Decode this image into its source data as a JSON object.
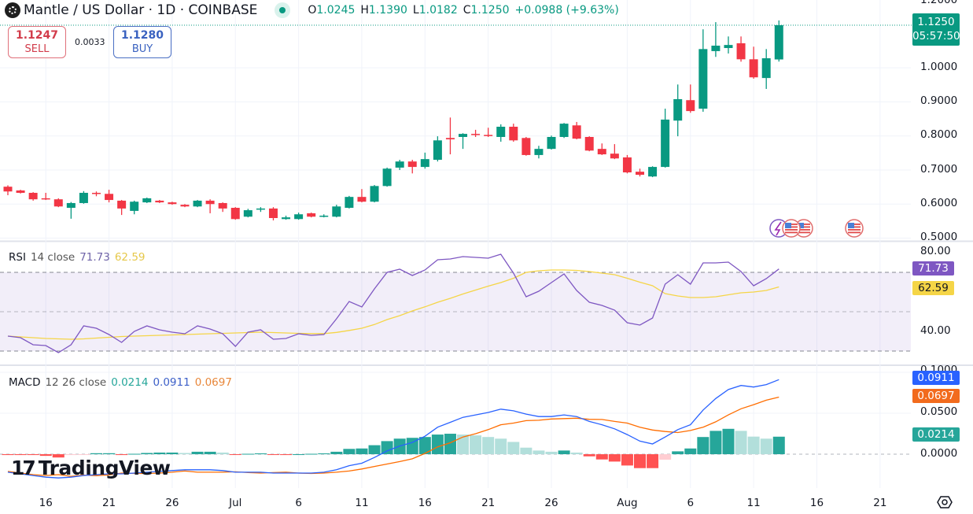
{
  "header": {
    "symbol_title": "Mantle / US Dollar · 1D · COINBASE",
    "ohlc": [
      {
        "k": "O",
        "v": "1.0245"
      },
      {
        "k": "H",
        "v": "1.1390"
      },
      {
        "k": "L",
        "v": "1.0182"
      },
      {
        "k": "C",
        "v": "1.1250"
      }
    ],
    "change": "+0.0988 (+9.63%)"
  },
  "trade": {
    "sell_price": "1.1247",
    "sell_label": "SELL",
    "spread": "0.0033",
    "buy_price": "1.1280",
    "buy_label": "BUY"
  },
  "price_axis": {
    "ticks": [
      "1.2000",
      "1.0000",
      "0.9000",
      "0.8000",
      "0.7000",
      "0.6000",
      "0.5000"
    ],
    "last_price": "1.1250",
    "countdown": "05:57:50"
  },
  "rsi_legend": {
    "name": "RSI",
    "params": "14 close",
    "value": "71.73",
    "ma_value": "62.59"
  },
  "rsi_axis": {
    "ticks": [
      "80.00",
      "40.00"
    ],
    "tag_rsi": "71.73",
    "tag_ma": "62.59"
  },
  "macd_legend": {
    "name": "MACD",
    "params": "12 26 close",
    "hist": "0.0214",
    "macd": "0.0911",
    "signal": "0.0697"
  },
  "macd_axis": {
    "ticks": [
      "0.1000",
      "0.0500",
      "0.0000"
    ],
    "tag_macd": "0.0911",
    "tag_signal": "0.0697",
    "tag_hist": "0.0214"
  },
  "logo": "TradingView",
  "icons": {
    "settings": "gear-icon",
    "events": [
      "lightning-icon",
      "us-flag-icon",
      "us-flag-icon",
      "us-flag-icon"
    ]
  },
  "colors": {
    "up": "#089981",
    "down": "#f23645",
    "rsi": "#7e57c2",
    "rsi_ma": "#f5d547",
    "macd": "#2962ff",
    "signal": "#ff6d00",
    "hist_up_strong": "#26a69a",
    "hist_up_weak": "#b2dfdb",
    "hist_down_strong": "#ff5252",
    "hist_down_weak": "#ffcdd2"
  },
  "chart_data": [
    {
      "type": "candlestick",
      "ylim": [
        0.492,
        1.199
      ],
      "x_ticks": [
        {
          "label": "16",
          "date": "Jun 16"
        },
        {
          "label": "21",
          "date": "Jun 21"
        },
        {
          "label": "26",
          "date": "Jun 26"
        },
        {
          "label": "Jul",
          "date": "Jul 1"
        },
        {
          "label": "6",
          "date": "Jul 6"
        },
        {
          "label": "11",
          "date": "Jul 11"
        },
        {
          "label": "16",
          "date": "Jul 16"
        },
        {
          "label": "21",
          "date": "Jul 21"
        },
        {
          "label": "26",
          "date": "Jul 26"
        },
        {
          "label": "Aug",
          "date": "Aug 1"
        },
        {
          "label": "6",
          "date": "Aug 6"
        },
        {
          "label": "11",
          "date": "Aug 11"
        },
        {
          "label": "16",
          "date": "Aug 16"
        },
        {
          "label": "21",
          "date": "Aug 21"
        }
      ],
      "dates": [
        "Jun 13",
        "Jun 14",
        "Jun 15",
        "Jun 16",
        "Jun 17",
        "Jun 18",
        "Jun 19",
        "Jun 20",
        "Jun 21",
        "Jun 22",
        "Jun 23",
        "Jun 24",
        "Jun 25",
        "Jun 26",
        "Jun 27",
        "Jun 28",
        "Jun 29",
        "Jun 30",
        "Jul 1",
        "Jul 2",
        "Jul 3",
        "Jul 4",
        "Jul 5",
        "Jul 6",
        "Jul 7",
        "Jul 8",
        "Jul 9",
        "Jul 10",
        "Jul 11",
        "Jul 12",
        "Jul 13",
        "Jul 14",
        "Jul 15",
        "Jul 16",
        "Jul 17",
        "Jul 18",
        "Jul 19",
        "Jul 20",
        "Jul 21",
        "Jul 22",
        "Jul 23",
        "Jul 24",
        "Jul 25",
        "Jul 26",
        "Jul 27",
        "Jul 28",
        "Jul 29",
        "Jul 30",
        "Jul 31",
        "Aug 1",
        "Aug 2",
        "Aug 3",
        "Aug 4",
        "Aug 5",
        "Aug 6",
        "Aug 7",
        "Aug 8",
        "Aug 9",
        "Aug 10",
        "Aug 11",
        "Aug 12",
        "Aug 13"
      ],
      "ohlc": [
        [
          0.651,
          0.655,
          0.626,
          0.637
        ],
        [
          0.64,
          0.642,
          0.631,
          0.633
        ],
        [
          0.633,
          0.635,
          0.61,
          0.614
        ],
        [
          0.617,
          0.633,
          0.612,
          0.615
        ],
        [
          0.614,
          0.617,
          0.591,
          0.593
        ],
        [
          0.589,
          0.606,
          0.557,
          0.603
        ],
        [
          0.603,
          0.638,
          0.601,
          0.633
        ],
        [
          0.633,
          0.637,
          0.623,
          0.63
        ],
        [
          0.63,
          0.642,
          0.605,
          0.612
        ],
        [
          0.61,
          0.612,
          0.568,
          0.587
        ],
        [
          0.58,
          0.61,
          0.57,
          0.607
        ],
        [
          0.605,
          0.619,
          0.603,
          0.617
        ],
        [
          0.61,
          0.612,
          0.603,
          0.605
        ],
        [
          0.605,
          0.607,
          0.598,
          0.6
        ],
        [
          0.598,
          0.6,
          0.591,
          0.593
        ],
        [
          0.593,
          0.612,
          0.591,
          0.61
        ],
        [
          0.61,
          0.614,
          0.573,
          0.6
        ],
        [
          0.603,
          0.605,
          0.577,
          0.587
        ],
        [
          0.589,
          0.591,
          0.554,
          0.556
        ],
        [
          0.563,
          0.586,
          0.561,
          0.582
        ],
        [
          0.585,
          0.591,
          0.577,
          0.587
        ],
        [
          0.587,
          0.591,
          0.552,
          0.559
        ],
        [
          0.556,
          0.566,
          0.554,
          0.561
        ],
        [
          0.556,
          0.575,
          0.554,
          0.57
        ],
        [
          0.573,
          0.575,
          0.561,
          0.563
        ],
        [
          0.565,
          0.57,
          0.561,
          0.566
        ],
        [
          0.563,
          0.598,
          0.561,
          0.593
        ],
        [
          0.589,
          0.624,
          0.587,
          0.621
        ],
        [
          0.621,
          0.644,
          0.605,
          0.607
        ],
        [
          0.607,
          0.656,
          0.605,
          0.653
        ],
        [
          0.653,
          0.707,
          0.651,
          0.704
        ],
        [
          0.707,
          0.73,
          0.7,
          0.725
        ],
        [
          0.725,
          0.73,
          0.69,
          0.709
        ],
        [
          0.709,
          0.751,
          0.704,
          0.732
        ],
        [
          0.73,
          0.799,
          0.725,
          0.787
        ],
        [
          0.794,
          0.854,
          0.746,
          0.79
        ],
        [
          0.797,
          0.808,
          0.762,
          0.806
        ],
        [
          0.806,
          0.818,
          0.797,
          0.804
        ],
        [
          0.803,
          0.824,
          0.797,
          0.801
        ],
        [
          0.797,
          0.834,
          0.783,
          0.827
        ],
        [
          0.827,
          0.836,
          0.783,
          0.787
        ],
        [
          0.794,
          0.797,
          0.742,
          0.744
        ],
        [
          0.744,
          0.771,
          0.734,
          0.762
        ],
        [
          0.762,
          0.801,
          0.76,
          0.797
        ],
        [
          0.797,
          0.838,
          0.794,
          0.836
        ],
        [
          0.831,
          0.841,
          0.79,
          0.792
        ],
        [
          0.797,
          0.799,
          0.755,
          0.757
        ],
        [
          0.762,
          0.778,
          0.744,
          0.746
        ],
        [
          0.748,
          0.776,
          0.732,
          0.734
        ],
        [
          0.737,
          0.744,
          0.69,
          0.693
        ],
        [
          0.695,
          0.704,
          0.681,
          0.686
        ],
        [
          0.681,
          0.711,
          0.679,
          0.709
        ],
        [
          0.709,
          0.88,
          0.707,
          0.848
        ],
        [
          0.845,
          0.951,
          0.799,
          0.908
        ],
        [
          0.905,
          0.951,
          0.868,
          0.873
        ],
        [
          0.88,
          1.113,
          0.871,
          1.055
        ],
        [
          1.049,
          1.134,
          1.032,
          1.065
        ],
        [
          1.058,
          1.092,
          1.042,
          1.067
        ],
        [
          1.072,
          1.092,
          1.018,
          1.025
        ],
        [
          1.025,
          1.062,
          0.968,
          0.972
        ],
        [
          0.97,
          1.055,
          0.938,
          1.028
        ],
        [
          1.0245,
          1.139,
          1.0182,
          1.125
        ]
      ],
      "last_price": 1.125
    },
    {
      "type": "line",
      "ylim": [
        23.2,
        85.6
      ],
      "bands": [
        70,
        50,
        30
      ],
      "series": [
        {
          "name": "RSI",
          "values": [
            37.6,
            36.8,
            33.2,
            32.8,
            29.2,
            33.2,
            42.8,
            41.6,
            38.4,
            34.4,
            40,
            42.8,
            40.8,
            39.6,
            38.8,
            42.8,
            41.2,
            38.8,
            32.4,
            39.6,
            40.8,
            36,
            36.4,
            38.8,
            38,
            38.4,
            46.4,
            55.2,
            52.4,
            61.6,
            70,
            71.6,
            68.4,
            71.2,
            76.4,
            76.8,
            78,
            77.6,
            77.2,
            79.2,
            69.6,
            57.6,
            60.4,
            64.8,
            69.2,
            60.8,
            54.8,
            53.2,
            50.8,
            44.4,
            43.2,
            46.8,
            64,
            68.8,
            64,
            74.8,
            74.8,
            75.2,
            70.4,
            63.2,
            66.8,
            71.73
          ]
        },
        {
          "name": "MA",
          "values": [
            37.6,
            37.2,
            36.8,
            36.4,
            36.2,
            36.0,
            36.2,
            36.6,
            37.0,
            37.4,
            37.6,
            37.8,
            38.0,
            38.2,
            38.4,
            38.6,
            38.8,
            39.0,
            39.2,
            39.4,
            39.6,
            39.4,
            39.2,
            39.0,
            38.9,
            38.9,
            39.5,
            40.5,
            41.6,
            43.5,
            46,
            48,
            50.4,
            52.5,
            54.8,
            56.8,
            59,
            61,
            63,
            64.8,
            67,
            70,
            70.8,
            71.2,
            71.2,
            71,
            70.4,
            69.6,
            68.8,
            67,
            65,
            63.2,
            59.2,
            58,
            57.2,
            57.2,
            57.6,
            58.6,
            59.6,
            60,
            60.8,
            62.59
          ]
        }
      ]
    },
    {
      "type": "bar+line",
      "ylim": [
        -0.0413,
        0.1077
      ],
      "histogram": [
        -0.001,
        -0.001,
        -0.001,
        -0.002,
        -0.004,
        -0.001,
        -0.0005,
        0.0012,
        0.0012,
        -0.001,
        0.0005,
        0.0015,
        0.002,
        0.002,
        0.0015,
        0.003,
        0.003,
        0.002,
        -0.0005,
        0.0005,
        0.001,
        -0.0005,
        -0.001,
        0,
        0.0005,
        0.001,
        0.003,
        0.0065,
        0.007,
        0.011,
        0.016,
        0.019,
        0.02,
        0.021,
        0.024,
        0.025,
        0.024,
        0.023,
        0.021,
        0.019,
        0.015,
        0.008,
        0.0045,
        0.003,
        0.0045,
        0.002,
        -0.0026,
        -0.0064,
        -0.009,
        -0.0138,
        -0.017,
        -0.017,
        -0.0067,
        0.0035,
        0.007,
        0.021,
        0.0285,
        0.031,
        0.0285,
        0.0215,
        0.019,
        0.0214
      ],
      "macd": [
        -0.022,
        -0.024,
        -0.026,
        -0.028,
        -0.029,
        -0.028,
        -0.026,
        -0.025,
        -0.024,
        -0.024,
        -0.023,
        -0.022,
        -0.021,
        -0.02,
        -0.019,
        -0.019,
        -0.019,
        -0.02,
        -0.022,
        -0.022,
        -0.022,
        -0.023,
        -0.023,
        -0.023,
        -0.023,
        -0.022,
        -0.019,
        -0.014,
        -0.011,
        -0.004,
        0.004,
        0.01,
        0.0144,
        0.022,
        0.033,
        0.039,
        0.045,
        0.048,
        0.051,
        0.055,
        0.053,
        0.049,
        0.046,
        0.046,
        0.048,
        0.046,
        0.04,
        0.036,
        0.031,
        0.024,
        0.016,
        0.0125,
        0.021,
        0.03,
        0.036,
        0.054,
        0.068,
        0.079,
        0.084,
        0.082,
        0.085,
        0.0911
      ],
      "signal": [
        -0.021,
        -0.023,
        -0.025,
        -0.026,
        -0.025,
        -0.027,
        -0.0255,
        -0.0262,
        -0.0252,
        -0.023,
        -0.0235,
        -0.0235,
        -0.023,
        -0.022,
        -0.0205,
        -0.022,
        -0.022,
        -0.022,
        -0.0215,
        -0.0225,
        -0.023,
        -0.0225,
        -0.022,
        -0.023,
        -0.0235,
        -0.023,
        -0.022,
        -0.0205,
        -0.018,
        -0.015,
        -0.012,
        -0.009,
        -0.0056,
        0.001,
        0.009,
        0.014,
        0.021,
        0.025,
        0.03,
        0.036,
        0.038,
        0.041,
        0.0415,
        0.043,
        0.0435,
        0.044,
        0.0426,
        0.0424,
        0.04,
        0.038,
        0.033,
        0.0295,
        0.0277,
        0.0265,
        0.029,
        0.033,
        0.0395,
        0.048,
        0.0555,
        0.0605,
        0.066,
        0.0697
      ]
    }
  ]
}
